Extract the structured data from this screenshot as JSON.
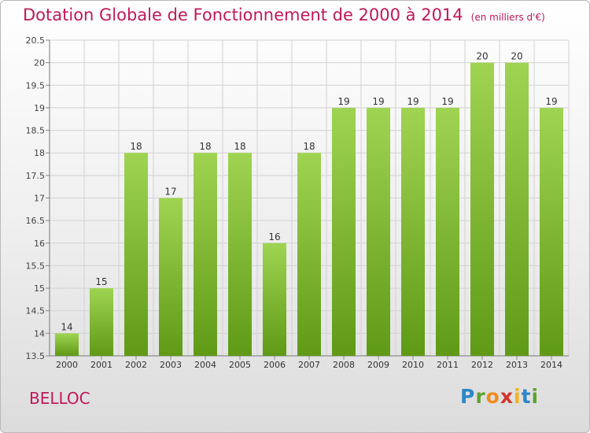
{
  "header": {
    "title": "Dotation Globale de Fonctionnement de 2000 à 2014",
    "subtitle": "(en milliers d'€)"
  },
  "commune": "BELLOC",
  "logo": [
    "P",
    "r",
    "o",
    "x",
    "i",
    "t",
    "i"
  ],
  "colors": {
    "title": "#c0185a",
    "bar_light": "#9fd452",
    "bar_dark": "#5f9a16"
  },
  "chart_data": {
    "type": "bar",
    "title": "Dotation Globale de Fonctionnement de 2000 à 2014",
    "subtitle": "(en milliers d'€)",
    "categories": [
      "2000",
      "2001",
      "2002",
      "2003",
      "2004",
      "2005",
      "2006",
      "2007",
      "2008",
      "2009",
      "2010",
      "2011",
      "2012",
      "2013",
      "2014"
    ],
    "values": [
      14,
      15,
      18,
      17,
      18,
      18,
      16,
      18,
      19,
      19,
      19,
      19,
      20,
      20,
      19
    ],
    "data_labels": [
      "14",
      "15",
      "18",
      "17",
      "18",
      "18",
      "16",
      "18",
      "19",
      "19",
      "19",
      "19",
      "20",
      "20",
      "19"
    ],
    "bar_tops": [
      14,
      15,
      18,
      17,
      18,
      18,
      16,
      18,
      19,
      19,
      19,
      19,
      20,
      20,
      19
    ],
    "yticks": [
      "13.5",
      "14",
      "14.5",
      "15",
      "15.5",
      "16",
      "16.5",
      "17",
      "17.5",
      "18",
      "18.5",
      "19",
      "19.5",
      "20",
      "20.5"
    ],
    "ylim": [
      13.5,
      20.5
    ],
    "grid": true,
    "xlabel": "",
    "ylabel": ""
  }
}
